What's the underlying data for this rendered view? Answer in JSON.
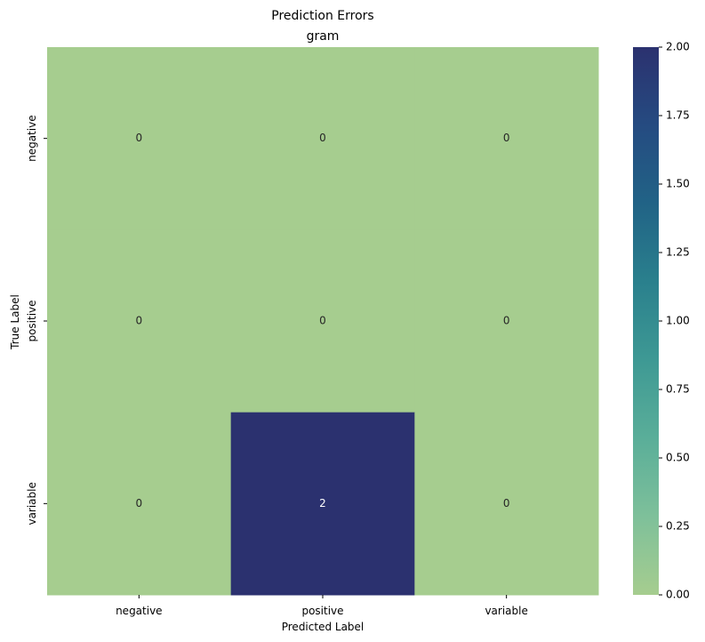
{
  "chart_data": {
    "type": "heatmap",
    "title": "Prediction Errors",
    "subtitle": "gram",
    "xlabel": "Predicted Label",
    "ylabel": "True Label",
    "x_categories": [
      "negative",
      "positive",
      "variable"
    ],
    "y_categories": [
      "negative",
      "positive",
      "variable"
    ],
    "values": [
      [
        0,
        0,
        0
      ],
      [
        0,
        0,
        0
      ],
      [
        0,
        2,
        0
      ]
    ],
    "vmin": 0,
    "vmax": 2,
    "colormap": [
      "#a6cd8f",
      "#7ec09a",
      "#5aae99",
      "#3e9994",
      "#2a808d",
      "#216386",
      "#254b81",
      "#2b316f"
    ],
    "colorbar_ticks": [
      "0.00",
      "0.25",
      "0.50",
      "0.75",
      "1.00",
      "1.25",
      "1.50",
      "1.75",
      "2.00"
    ],
    "grid": false,
    "colorbar": "right"
  }
}
